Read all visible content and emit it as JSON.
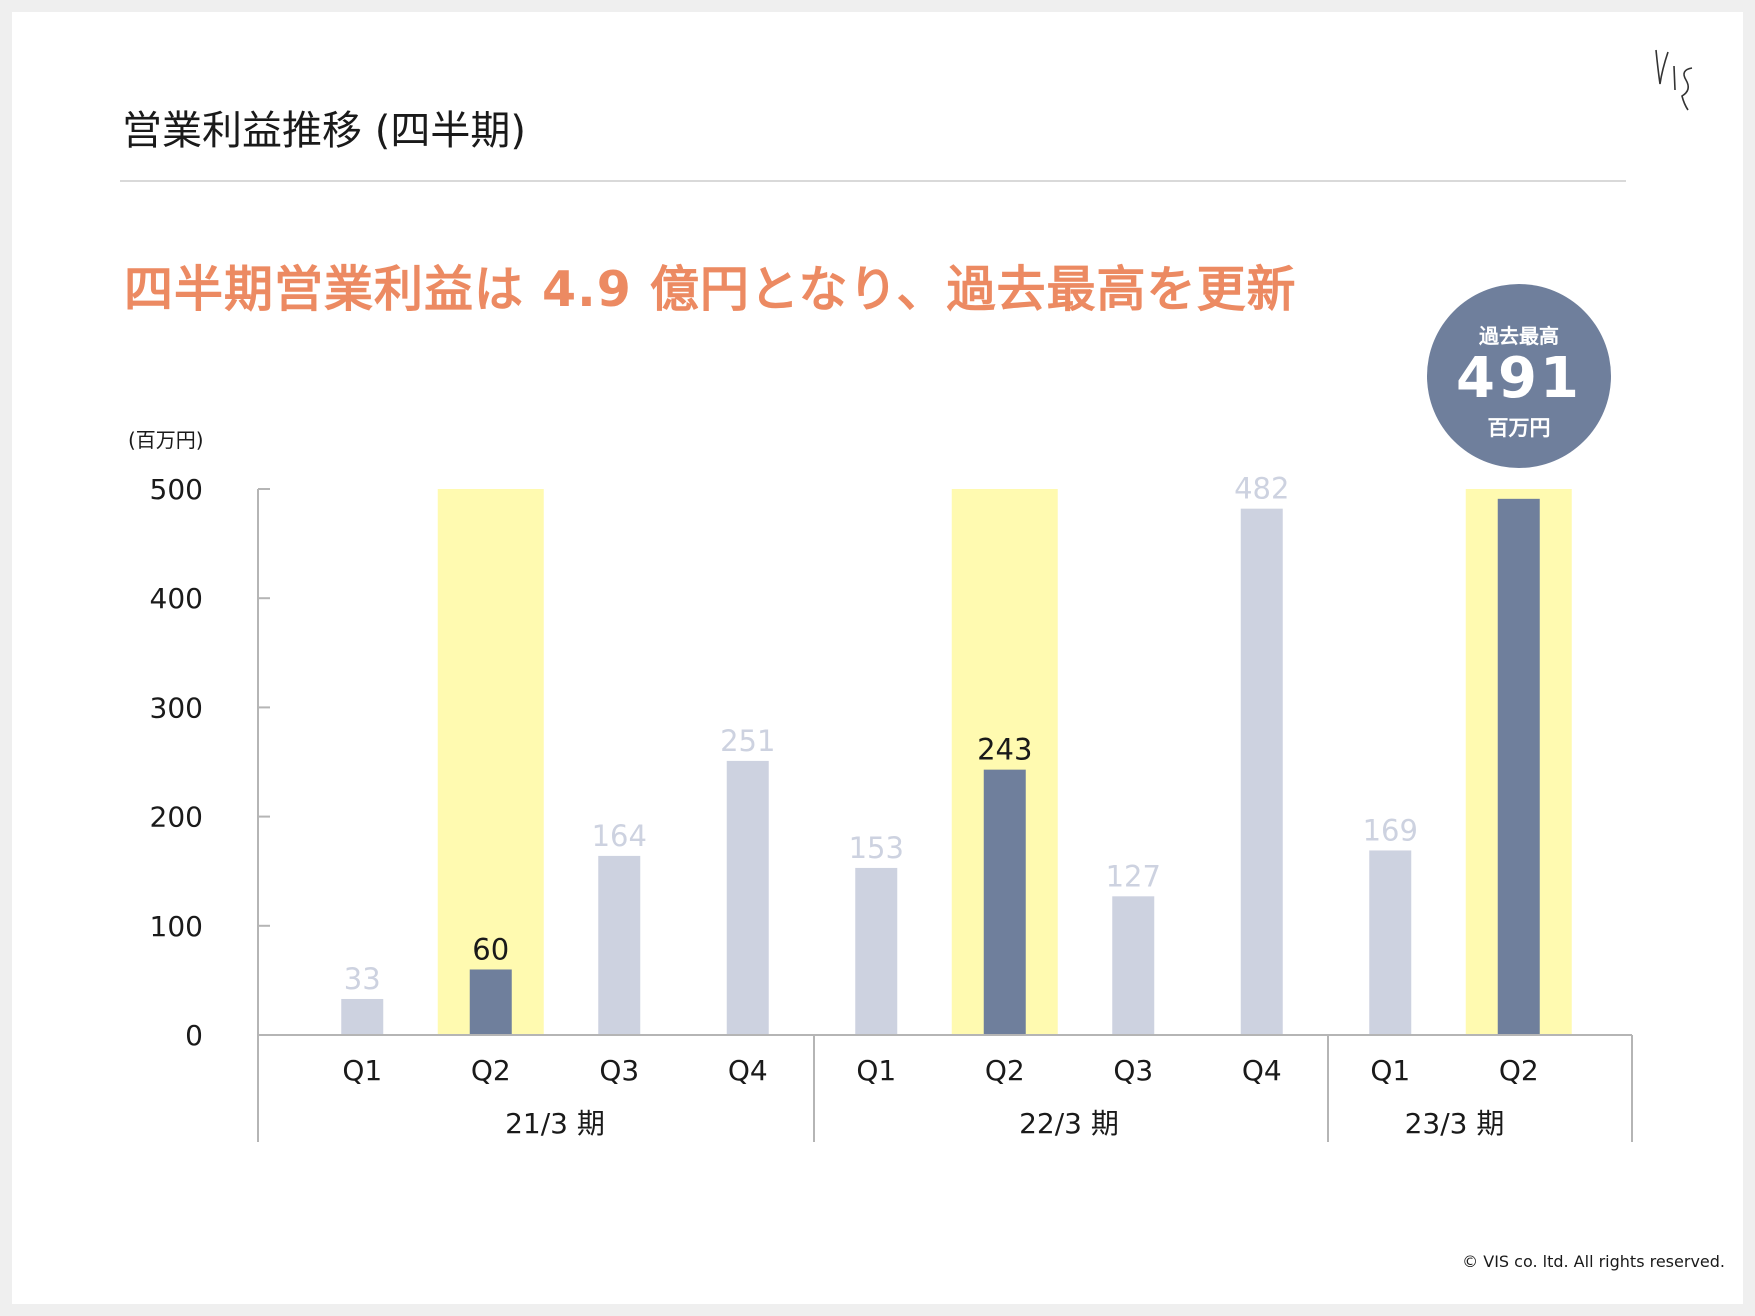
{
  "slide": {
    "title": "営業利益推移 (四半期)",
    "headline": "四半期営業利益は 4.9 億円となり、過去最高を更新",
    "unit_label": "(百万円)",
    "copyright": "© VIS co. ltd. All rights reserved."
  },
  "badge": {
    "label": "過去最高",
    "value": "491",
    "unit": "百万円"
  },
  "colors": {
    "accent": "#ec8a62",
    "bar_light": "#cdd2e0",
    "bar_dark": "#6f7f9c",
    "highlight": "#fffab0",
    "axis": "#b5b5b5",
    "badge": "#6f7f9c"
  },
  "chart_data": {
    "type": "bar",
    "ylim": [
      0,
      500
    ],
    "yticks": [
      0,
      100,
      200,
      300,
      400,
      500
    ],
    "ylabel": "(百万円)",
    "categories": [
      "Q1",
      "Q2",
      "Q3",
      "Q4",
      "Q1",
      "Q2",
      "Q3",
      "Q4",
      "Q1",
      "Q2"
    ],
    "groups": [
      {
        "label": "21/3 期",
        "count": 4
      },
      {
        "label": "22/3 期",
        "count": 4
      },
      {
        "label": "23/3 期",
        "count": 2
      }
    ],
    "values": [
      33,
      60,
      164,
      251,
      153,
      243,
      127,
      482,
      169,
      491
    ],
    "highlighted": [
      false,
      true,
      false,
      false,
      false,
      true,
      false,
      false,
      false,
      true
    ],
    "value_labels": [
      "33",
      "60",
      "164",
      "251",
      "153",
      "243",
      "127",
      "482",
      "169",
      ""
    ],
    "grid": false,
    "legend": "none"
  }
}
